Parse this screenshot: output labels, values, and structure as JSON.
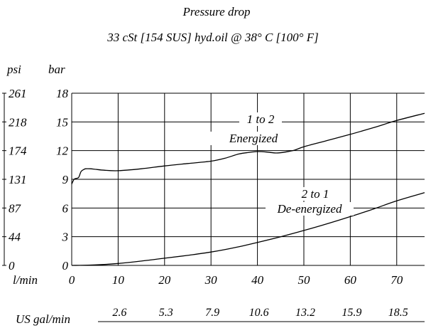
{
  "chart_data": {
    "type": "line",
    "title": "Pressure drop",
    "subtitle": "33 cSt [154 SUS] hyd.oil @ 38° C [100° F]",
    "y_left_unit": "psi",
    "y_right_unit": "bar",
    "x_unit": "l/min",
    "x2_label": "US gal/min",
    "psi_ticks": [
      "261",
      "218",
      "174",
      "131",
      "87",
      "44",
      "0"
    ],
    "bar_ticks": [
      18,
      15,
      12,
      9,
      6,
      3,
      0
    ],
    "x_ticks": [
      0,
      10,
      20,
      30,
      40,
      50,
      60,
      70
    ],
    "x2_ticks": [
      "2.6",
      "5.3",
      "7.9",
      "10.6",
      "13.2",
      "15.9",
      "18.5"
    ],
    "x2_tick_positions_lpm": [
      10,
      20,
      30,
      40,
      50,
      60,
      70
    ],
    "xlim": [
      0,
      76
    ],
    "ylim": [
      0,
      18
    ],
    "grid": true,
    "series": [
      {
        "name": "1 to 2 Energized",
        "label_line1": "1 to 2",
        "label_line2": "Energized",
        "x": [
          0,
          0.5,
          1,
          1.5,
          2,
          2.5,
          3,
          4,
          5,
          7,
          10,
          15,
          20,
          25,
          30,
          33,
          36,
          38,
          40,
          42,
          44,
          46,
          48,
          50,
          55,
          60,
          65,
          70,
          76
        ],
        "y": [
          8.5,
          9.0,
          9.1,
          9.2,
          9.8,
          10.0,
          10.1,
          10.1,
          10.05,
          9.95,
          9.9,
          10.1,
          10.4,
          10.65,
          10.9,
          11.2,
          11.65,
          11.8,
          11.9,
          11.85,
          11.75,
          11.85,
          12.05,
          12.4,
          13.05,
          13.7,
          14.4,
          15.15,
          15.9
        ]
      },
      {
        "name": "2 to 1 De-energized",
        "label_line1": "2 to 1",
        "label_line2": "De-energized",
        "x": [
          0,
          5,
          10,
          15,
          20,
          25,
          30,
          35,
          40,
          45,
          50,
          55,
          60,
          65,
          70,
          76
        ],
        "y": [
          0,
          0.05,
          0.2,
          0.45,
          0.75,
          1.05,
          1.4,
          1.85,
          2.4,
          3.0,
          3.65,
          4.35,
          5.1,
          5.9,
          6.75,
          7.6
        ]
      }
    ]
  }
}
